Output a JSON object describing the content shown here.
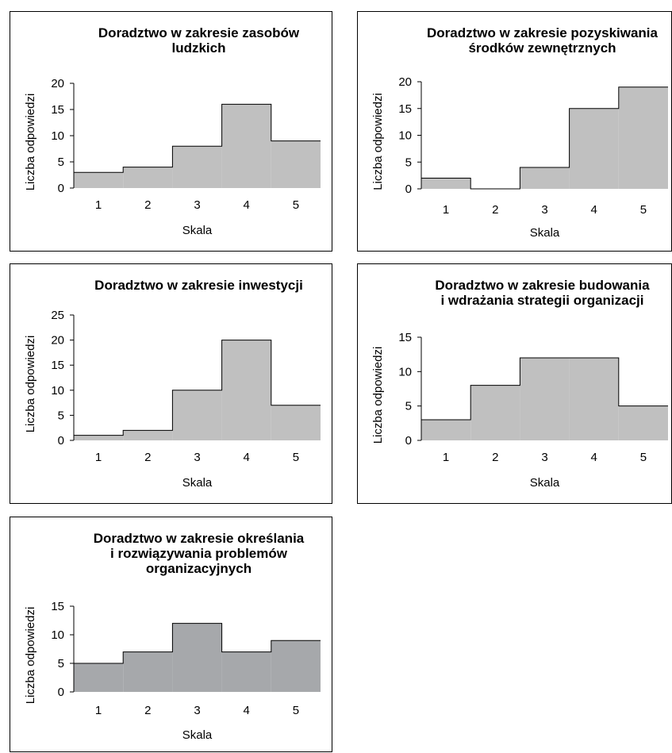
{
  "chart_data": [
    {
      "type": "bar",
      "title": [
        "Doradztwo w zakresie zasobów",
        "ludzkich"
      ],
      "xlabel": "Skala",
      "ylabel": "Liczba odpowiedzi",
      "categories": [
        "1",
        "2",
        "3",
        "4",
        "5"
      ],
      "values": [
        3,
        4,
        8,
        16,
        9
      ],
      "ylim": [
        0,
        20
      ],
      "yticks": [
        "0",
        "5",
        "10",
        "15",
        "20"
      ],
      "bar_color": "#c0c0c0",
      "grid": false
    },
    {
      "type": "bar",
      "title": [
        "Doradztwo w zakresie pozyskiwania",
        "środków zewnętrznych"
      ],
      "xlabel": "Skala",
      "ylabel": "Liczba odpowiedzi",
      "categories": [
        "1",
        "2",
        "3",
        "4",
        "5"
      ],
      "values": [
        2,
        0,
        4,
        15,
        19
      ],
      "ylim": [
        0,
        20
      ],
      "yticks": [
        "0",
        "5",
        "10",
        "15",
        "20"
      ],
      "bar_color": "#c0c0c0",
      "grid": false
    },
    {
      "type": "bar",
      "title": [
        "Doradztwo w zakresie inwestycji"
      ],
      "xlabel": "Skala",
      "ylabel": "Liczba odpowiedzi",
      "categories": [
        "1",
        "2",
        "3",
        "4",
        "5"
      ],
      "values": [
        1,
        2,
        10,
        20,
        7
      ],
      "ylim": [
        0,
        25
      ],
      "yticks": [
        "0",
        "5",
        "10",
        "15",
        "20",
        "25"
      ],
      "bar_color": "#c0c0c0",
      "grid": false
    },
    {
      "type": "bar",
      "title": [
        "Doradztwo w zakresie budowania",
        "i wdrażania strategii organizacji"
      ],
      "xlabel": "Skala",
      "ylabel": "Liczba odpowiedzi",
      "categories": [
        "1",
        "2",
        "3",
        "4",
        "5"
      ],
      "values": [
        3,
        8,
        12,
        12,
        5
      ],
      "ylim": [
        0,
        15
      ],
      "yticks": [
        "0",
        "5",
        "10",
        "15"
      ],
      "bar_color": "#c0c0c0",
      "grid": false
    },
    {
      "type": "bar",
      "title": [
        "Doradztwo w zakresie określania",
        "i rozwiązywania problemów",
        "organizacyjnych"
      ],
      "xlabel": "Skala",
      "ylabel": "Liczba odpowiedzi",
      "categories": [
        "1",
        "2",
        "3",
        "4",
        "5"
      ],
      "values": [
        5,
        7,
        12,
        7,
        9
      ],
      "ylim": [
        0,
        15
      ],
      "yticks": [
        "0",
        "5",
        "10",
        "15"
      ],
      "bar_color": "#a6a8ab",
      "grid": false
    }
  ]
}
